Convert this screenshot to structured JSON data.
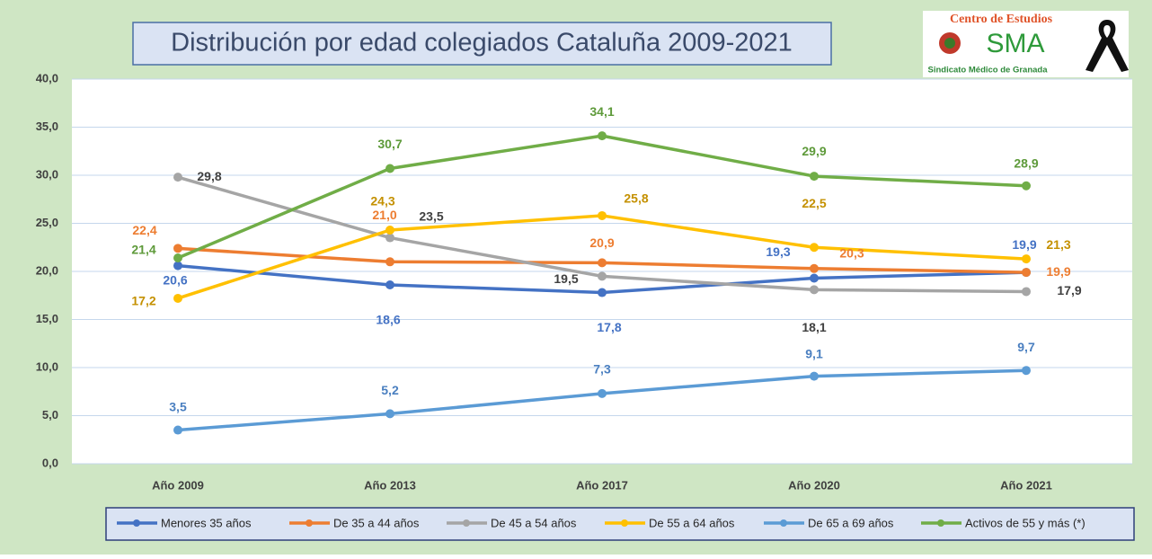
{
  "logo": {
    "line1": "Centro de Estudios",
    "mark": "SMA",
    "line2": "Sindicato Médico de Granada"
  },
  "chart_data": {
    "type": "line",
    "title": "Distribución por edad colegiados Cataluña 2009-2021",
    "categories": [
      "Año 2009",
      "Año 2013",
      "Año 2017",
      "Año 2020",
      "Año 2021"
    ],
    "ylim": [
      0,
      40
    ],
    "yticks": [
      {
        "value": 0,
        "label": "0,0"
      },
      {
        "value": 5,
        "label": "5,0"
      },
      {
        "value": 10,
        "label": "10,0"
      },
      {
        "value": 15,
        "label": "15,0"
      },
      {
        "value": 20,
        "label": "20,0"
      },
      {
        "value": 25,
        "label": "25,0"
      },
      {
        "value": 30,
        "label": "30,0"
      },
      {
        "value": 35,
        "label": "35,0"
      },
      {
        "value": 40,
        "label": "40,0"
      }
    ],
    "grid": true,
    "legend": "bottom",
    "series": [
      {
        "name": "Menores 35 años",
        "color": "#4472c4",
        "label_color": "#4472c4",
        "values": [
          20.6,
          18.6,
          17.8,
          19.3,
          19.9
        ],
        "value_labels": [
          "20,6",
          "18,6",
          "17,8",
          "19,3",
          "19,9"
        ]
      },
      {
        "name": "De 35 a 44 años",
        "color": "#ed7d31",
        "label_color": "#ed7d31",
        "values": [
          22.4,
          21.0,
          20.9,
          20.3,
          19.9
        ],
        "value_labels": [
          "22,4",
          "21,0",
          "20,9",
          "20,3",
          "19,9"
        ]
      },
      {
        "name": "De 45 a 54 años",
        "color": "#a5a5a5",
        "label_color": "#404040",
        "values": [
          29.8,
          23.5,
          19.5,
          18.1,
          17.9
        ],
        "value_labels": [
          "29,8",
          "23,5",
          "19,5",
          "18,1",
          "17,9"
        ]
      },
      {
        "name": "De 55 a 64 años",
        "color": "#ffc000",
        "label_color": "#c49000",
        "values": [
          17.2,
          24.3,
          25.8,
          22.5,
          21.3
        ],
        "value_labels": [
          "17,2",
          "24,3",
          "25,8",
          "22,5",
          "21,3"
        ]
      },
      {
        "name": "De 65 a 69 años",
        "color": "#5b9bd5",
        "label_color": "#4a7fc0",
        "values": [
          3.5,
          5.2,
          7.3,
          9.1,
          9.7
        ],
        "value_labels": [
          "3,5",
          "5,2",
          "7,3",
          "9,1",
          "9,7"
        ]
      },
      {
        "name": "Activos de 55 y más (*)",
        "color": "#70ad47",
        "label_color": "#5e9a3a",
        "values": [
          21.4,
          30.7,
          34.1,
          29.9,
          28.9
        ],
        "value_labels": [
          "21,4",
          "30,7",
          "34,1",
          "29,9",
          "28,9"
        ]
      }
    ]
  }
}
